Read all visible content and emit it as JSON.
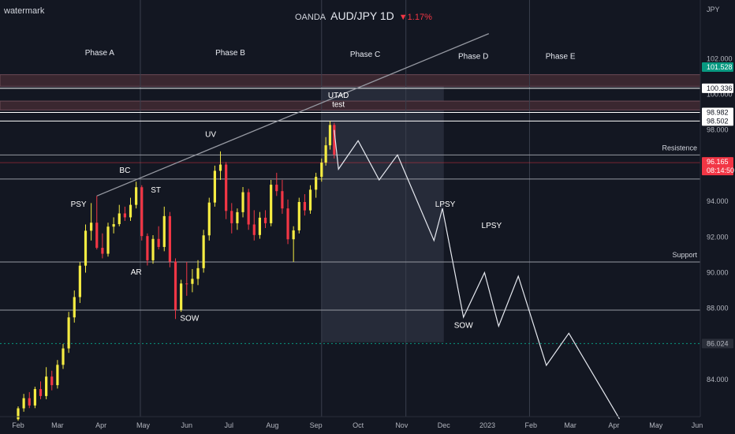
{
  "watermark": "watermark",
  "header": {
    "broker": "OANDA",
    "symbol": "AUD/JPY 1D",
    "change": "▼1.17%",
    "currency": "JPY"
  },
  "colors": {
    "background": "#131722",
    "grid": "#252a37",
    "bull": "#f5ec42",
    "bear": "#f23645",
    "axis_text": "#b2b5be",
    "price_tag_green": "#089981",
    "price_tag_red": "#f23645"
  },
  "chart_data": {
    "type": "candlestick",
    "x_axis_labels": [
      "Feb",
      "Mar",
      "Apr",
      "May",
      "Jun",
      "Jul",
      "Aug",
      "Sep",
      "Oct",
      "Nov",
      "Dec",
      "2023",
      "Feb",
      "Mar",
      "Apr",
      "May",
      "Jun"
    ],
    "y_ticks": [
      84.0,
      86.0,
      88.0,
      90.0,
      92.0,
      94.0,
      96.0,
      98.0,
      100.0,
      102.0
    ],
    "y_tick_labels": [
      "84.000",
      "86.000",
      "88.000",
      "90.000",
      "92.000",
      "94.000",
      "96.000",
      "98.000",
      "100.000",
      "102.000"
    ],
    "ylim": [
      81.8,
      104.3
    ],
    "candles": [
      {
        "d": "2022-02-01",
        "o": 81.78,
        "h": 82.5,
        "l": 81.7,
        "c": 82.39
      },
      {
        "d": "2022-02-05",
        "o": 82.39,
        "h": 83.2,
        "l": 82.2,
        "c": 82.96
      },
      {
        "d": "2022-02-09",
        "o": 82.96,
        "h": 83.3,
        "l": 82.4,
        "c": 82.55
      },
      {
        "d": "2022-02-13",
        "o": 82.55,
        "h": 83.6,
        "l": 82.4,
        "c": 83.47
      },
      {
        "d": "2022-02-17",
        "o": 83.47,
        "h": 83.9,
        "l": 82.9,
        "c": 83.08
      },
      {
        "d": "2022-02-21",
        "o": 83.08,
        "h": 84.7,
        "l": 82.9,
        "c": 84.17
      },
      {
        "d": "2022-02-25",
        "o": 84.17,
        "h": 84.5,
        "l": 83.4,
        "c": 83.69
      },
      {
        "d": "2022-03-01",
        "o": 83.69,
        "h": 85.1,
        "l": 83.5,
        "c": 84.83
      },
      {
        "d": "2022-03-05",
        "o": 84.83,
        "h": 86.0,
        "l": 84.6,
        "c": 85.75
      },
      {
        "d": "2022-03-09",
        "o": 85.75,
        "h": 87.8,
        "l": 85.5,
        "c": 87.49
      },
      {
        "d": "2022-03-13",
        "o": 87.49,
        "h": 89.0,
        "l": 87.2,
        "c": 88.63
      },
      {
        "d": "2022-03-17",
        "o": 88.63,
        "h": 90.6,
        "l": 88.3,
        "c": 90.39
      },
      {
        "d": "2022-03-21",
        "o": 90.39,
        "h": 92.7,
        "l": 90.0,
        "c": 92.35
      },
      {
        "d": "2022-03-25",
        "o": 92.35,
        "h": 93.9,
        "l": 91.8,
        "c": 92.8
      },
      {
        "d": "2022-03-29",
        "o": 92.8,
        "h": 94.3,
        "l": 91.3,
        "c": 91.39
      },
      {
        "d": "2022-04-02",
        "o": 91.39,
        "h": 92.2,
        "l": 90.8,
        "c": 91.06
      },
      {
        "d": "2022-04-06",
        "o": 91.06,
        "h": 92.8,
        "l": 90.9,
        "c": 92.58
      },
      {
        "d": "2022-04-10",
        "o": 92.58,
        "h": 93.1,
        "l": 92.2,
        "c": 92.72
      },
      {
        "d": "2022-04-14",
        "o": 92.72,
        "h": 93.8,
        "l": 92.6,
        "c": 93.32
      },
      {
        "d": "2022-04-18",
        "o": 93.32,
        "h": 93.7,
        "l": 92.9,
        "c": 93.1
      },
      {
        "d": "2022-04-22",
        "o": 93.1,
        "h": 94.2,
        "l": 92.9,
        "c": 93.8
      },
      {
        "d": "2022-04-26",
        "o": 93.8,
        "h": 95.1,
        "l": 93.6,
        "c": 94.79
      },
      {
        "d": "2022-04-30",
        "o": 94.79,
        "h": 94.9,
        "l": 91.8,
        "c": 92.05
      },
      {
        "d": "2022-05-04",
        "o": 92.05,
        "h": 92.2,
        "l": 90.4,
        "c": 90.69
      },
      {
        "d": "2022-05-08",
        "o": 90.69,
        "h": 92.1,
        "l": 90.5,
        "c": 91.89
      },
      {
        "d": "2022-05-12",
        "o": 91.89,
        "h": 92.6,
        "l": 91.3,
        "c": 91.44
      },
      {
        "d": "2022-05-16",
        "o": 91.44,
        "h": 93.7,
        "l": 91.2,
        "c": 93.17
      },
      {
        "d": "2022-05-20",
        "o": 93.17,
        "h": 93.4,
        "l": 90.3,
        "c": 90.62
      },
      {
        "d": "2022-05-24",
        "o": 90.62,
        "h": 90.8,
        "l": 87.4,
        "c": 87.91
      },
      {
        "d": "2022-05-28",
        "o": 87.91,
        "h": 89.6,
        "l": 87.8,
        "c": 89.39
      },
      {
        "d": "2022-06-01",
        "o": 89.39,
        "h": 90.6,
        "l": 88.7,
        "c": 89.37
      },
      {
        "d": "2022-06-05",
        "o": 89.37,
        "h": 90.2,
        "l": 88.9,
        "c": 89.65
      },
      {
        "d": "2022-06-09",
        "o": 89.65,
        "h": 90.7,
        "l": 89.3,
        "c": 90.25
      },
      {
        "d": "2022-06-13",
        "o": 90.25,
        "h": 92.4,
        "l": 90.0,
        "c": 92.09
      },
      {
        "d": "2022-06-17",
        "o": 92.09,
        "h": 94.2,
        "l": 91.8,
        "c": 93.93
      },
      {
        "d": "2022-06-21",
        "o": 93.93,
        "h": 96.0,
        "l": 93.7,
        "c": 95.71
      },
      {
        "d": "2022-06-25",
        "o": 95.71,
        "h": 96.8,
        "l": 95.2,
        "c": 96.06
      },
      {
        "d": "2022-06-29",
        "o": 96.06,
        "h": 96.2,
        "l": 93.0,
        "c": 93.46
      },
      {
        "d": "2022-07-03",
        "o": 93.46,
        "h": 93.9,
        "l": 92.2,
        "c": 92.77
      },
      {
        "d": "2022-07-07",
        "o": 92.77,
        "h": 93.6,
        "l": 92.4,
        "c": 93.39
      },
      {
        "d": "2022-07-11",
        "o": 93.39,
        "h": 94.8,
        "l": 93.1,
        "c": 94.51
      },
      {
        "d": "2022-07-15",
        "o": 94.51,
        "h": 94.7,
        "l": 92.4,
        "c": 92.7
      },
      {
        "d": "2022-07-19",
        "o": 92.7,
        "h": 93.5,
        "l": 91.8,
        "c": 92.11
      },
      {
        "d": "2022-07-23",
        "o": 92.11,
        "h": 93.4,
        "l": 91.9,
        "c": 93.08
      },
      {
        "d": "2022-07-27",
        "o": 93.08,
        "h": 93.5,
        "l": 92.5,
        "c": 92.77
      },
      {
        "d": "2022-07-31",
        "o": 92.77,
        "h": 95.2,
        "l": 92.6,
        "c": 94.93
      },
      {
        "d": "2022-08-04",
        "o": 94.93,
        "h": 95.6,
        "l": 94.3,
        "c": 94.57
      },
      {
        "d": "2022-08-08",
        "o": 94.57,
        "h": 95.2,
        "l": 93.3,
        "c": 93.6
      },
      {
        "d": "2022-08-12",
        "o": 93.6,
        "h": 94.1,
        "l": 91.6,
        "c": 91.87
      },
      {
        "d": "2022-08-16",
        "o": 91.87,
        "h": 92.6,
        "l": 90.6,
        "c": 92.37
      },
      {
        "d": "2022-08-20",
        "o": 92.37,
        "h": 94.2,
        "l": 92.2,
        "c": 93.96
      },
      {
        "d": "2022-08-24",
        "o": 93.96,
        "h": 94.4,
        "l": 93.2,
        "c": 93.49
      },
      {
        "d": "2022-08-28",
        "o": 93.49,
        "h": 94.9,
        "l": 93.3,
        "c": 94.65
      },
      {
        "d": "2022-09-01",
        "o": 94.65,
        "h": 95.6,
        "l": 94.2,
        "c": 95.37
      },
      {
        "d": "2022-09-05",
        "o": 95.37,
        "h": 96.4,
        "l": 95.1,
        "c": 96.17
      },
      {
        "d": "2022-09-08",
        "o": 96.17,
        "h": 97.6,
        "l": 96.0,
        "c": 97.14
      },
      {
        "d": "2022-09-11",
        "o": 97.14,
        "h": 98.5,
        "l": 96.9,
        "c": 98.28
      },
      {
        "d": "2022-09-14",
        "o": 98.28,
        "h": 98.4,
        "l": 96.4,
        "c": 96.62
      }
    ],
    "projection_path": [
      {
        "d": "2022-09-14",
        "v": 98.0
      },
      {
        "d": "2022-09-17",
        "v": 95.8
      },
      {
        "d": "2022-10-01",
        "v": 97.4
      },
      {
        "d": "2022-10-16",
        "v": 95.2
      },
      {
        "d": "2022-10-29",
        "v": 96.6
      },
      {
        "d": "2022-11-24",
        "v": 91.8
      },
      {
        "d": "2022-11-30",
        "v": 93.6
      },
      {
        "d": "2022-12-15",
        "v": 87.5
      },
      {
        "d": "2022-12-30",
        "v": 90.0
      },
      {
        "d": "2023-01-09",
        "v": 87.0
      },
      {
        "d": "2023-01-23",
        "v": 89.8
      },
      {
        "d": "2023-02-12",
        "v": 84.8
      },
      {
        "d": "2023-02-28",
        "v": 86.6
      },
      {
        "d": "2023-04-05",
        "v": 81.8
      }
    ],
    "trendline": [
      {
        "d": "2022-03-29",
        "v": 94.3
      },
      {
        "d": "2023-01-02",
        "v": 103.4
      }
    ],
    "horizontal_levels": [
      {
        "v": 100.336,
        "color": "#ffffff",
        "label": "100.336"
      },
      {
        "v": 98.982,
        "color": "#ffffff",
        "label": "98.982"
      },
      {
        "v": 98.502,
        "color": "#ffffff",
        "label": "98.502"
      },
      {
        "v": 96.6,
        "color": "#9598a1",
        "text": "Resistence"
      },
      {
        "v": 95.25,
        "color": "#9598a1",
        "text": ""
      },
      {
        "v": 90.6,
        "color": "#9598a1",
        "text": "Support"
      },
      {
        "v": 87.9,
        "color": "#9598a1",
        "text": ""
      }
    ],
    "zones": [
      {
        "from": 100.45,
        "to": 101.1
      },
      {
        "from": 99.12,
        "to": 99.62
      }
    ],
    "highlight_region": {
      "from_date": "2022-09-05",
      "to_date": "2022-12-01",
      "from_v": 86.1,
      "to_v": 101.0
    },
    "phase_dividers": [
      "2022-04-29",
      "2022-09-05",
      "2022-11-04",
      "2023-01-31"
    ],
    "phases": [
      {
        "label": "Phase A",
        "d": "2022-03-31",
        "v": 102.2
      },
      {
        "label": "Phase B",
        "d": "2022-07-02",
        "v": 102.2
      },
      {
        "label": "Phase C",
        "d": "2022-10-06",
        "v": 102.1
      },
      {
        "label": "Phase D",
        "d": "2022-12-22",
        "v": 102.0
      },
      {
        "label": "Phase E",
        "d": "2023-02-22",
        "v": 102.0
      }
    ],
    "annotations": [
      {
        "label": "PSY",
        "d": "2022-03-16",
        "v": 93.7
      },
      {
        "label": "BC",
        "d": "2022-04-18",
        "v": 95.6
      },
      {
        "label": "ST",
        "d": "2022-05-10",
        "v": 94.5
      },
      {
        "label": "AR",
        "d": "2022-04-26",
        "v": 89.9
      },
      {
        "label": "SOW",
        "d": "2022-06-03",
        "v": 87.3
      },
      {
        "label": "UV",
        "d": "2022-06-18",
        "v": 97.6
      },
      {
        "label": "UTAD",
        "d": "2022-09-17",
        "v": 99.8
      },
      {
        "label": "test",
        "d": "2022-09-17",
        "v": 99.3
      },
      {
        "label": "LPSY",
        "d": "2022-12-02",
        "v": 93.7
      },
      {
        "label": "LPSY",
        "d": "2023-01-04",
        "v": 92.5
      },
      {
        "label": "SOW",
        "d": "2022-12-15",
        "v": 86.9
      }
    ],
    "price_tags": [
      {
        "label": "101.528",
        "v": 101.528,
        "bg": "#089981",
        "fg": "#ffffff"
      },
      {
        "label": "100.336",
        "v": 100.336,
        "bg": "#ffffff",
        "fg": "#131722"
      },
      {
        "label": "98.982",
        "v": 98.982,
        "bg": "#ffffff",
        "fg": "#131722"
      },
      {
        "label": "98.502",
        "v": 98.502,
        "bg": "#ffffff",
        "fg": "#131722"
      },
      {
        "label": "96.165",
        "v": 96.165,
        "bg": "#f23645",
        "fg": "#ffffff",
        "sub": "08:14:50"
      },
      {
        "label": "86.024",
        "v": 86.024,
        "bg": "#2a2e39",
        "fg": "#b2b5be"
      }
    ],
    "dashed_levels": [
      86.024
    ],
    "current_price_line": 96.165
  }
}
